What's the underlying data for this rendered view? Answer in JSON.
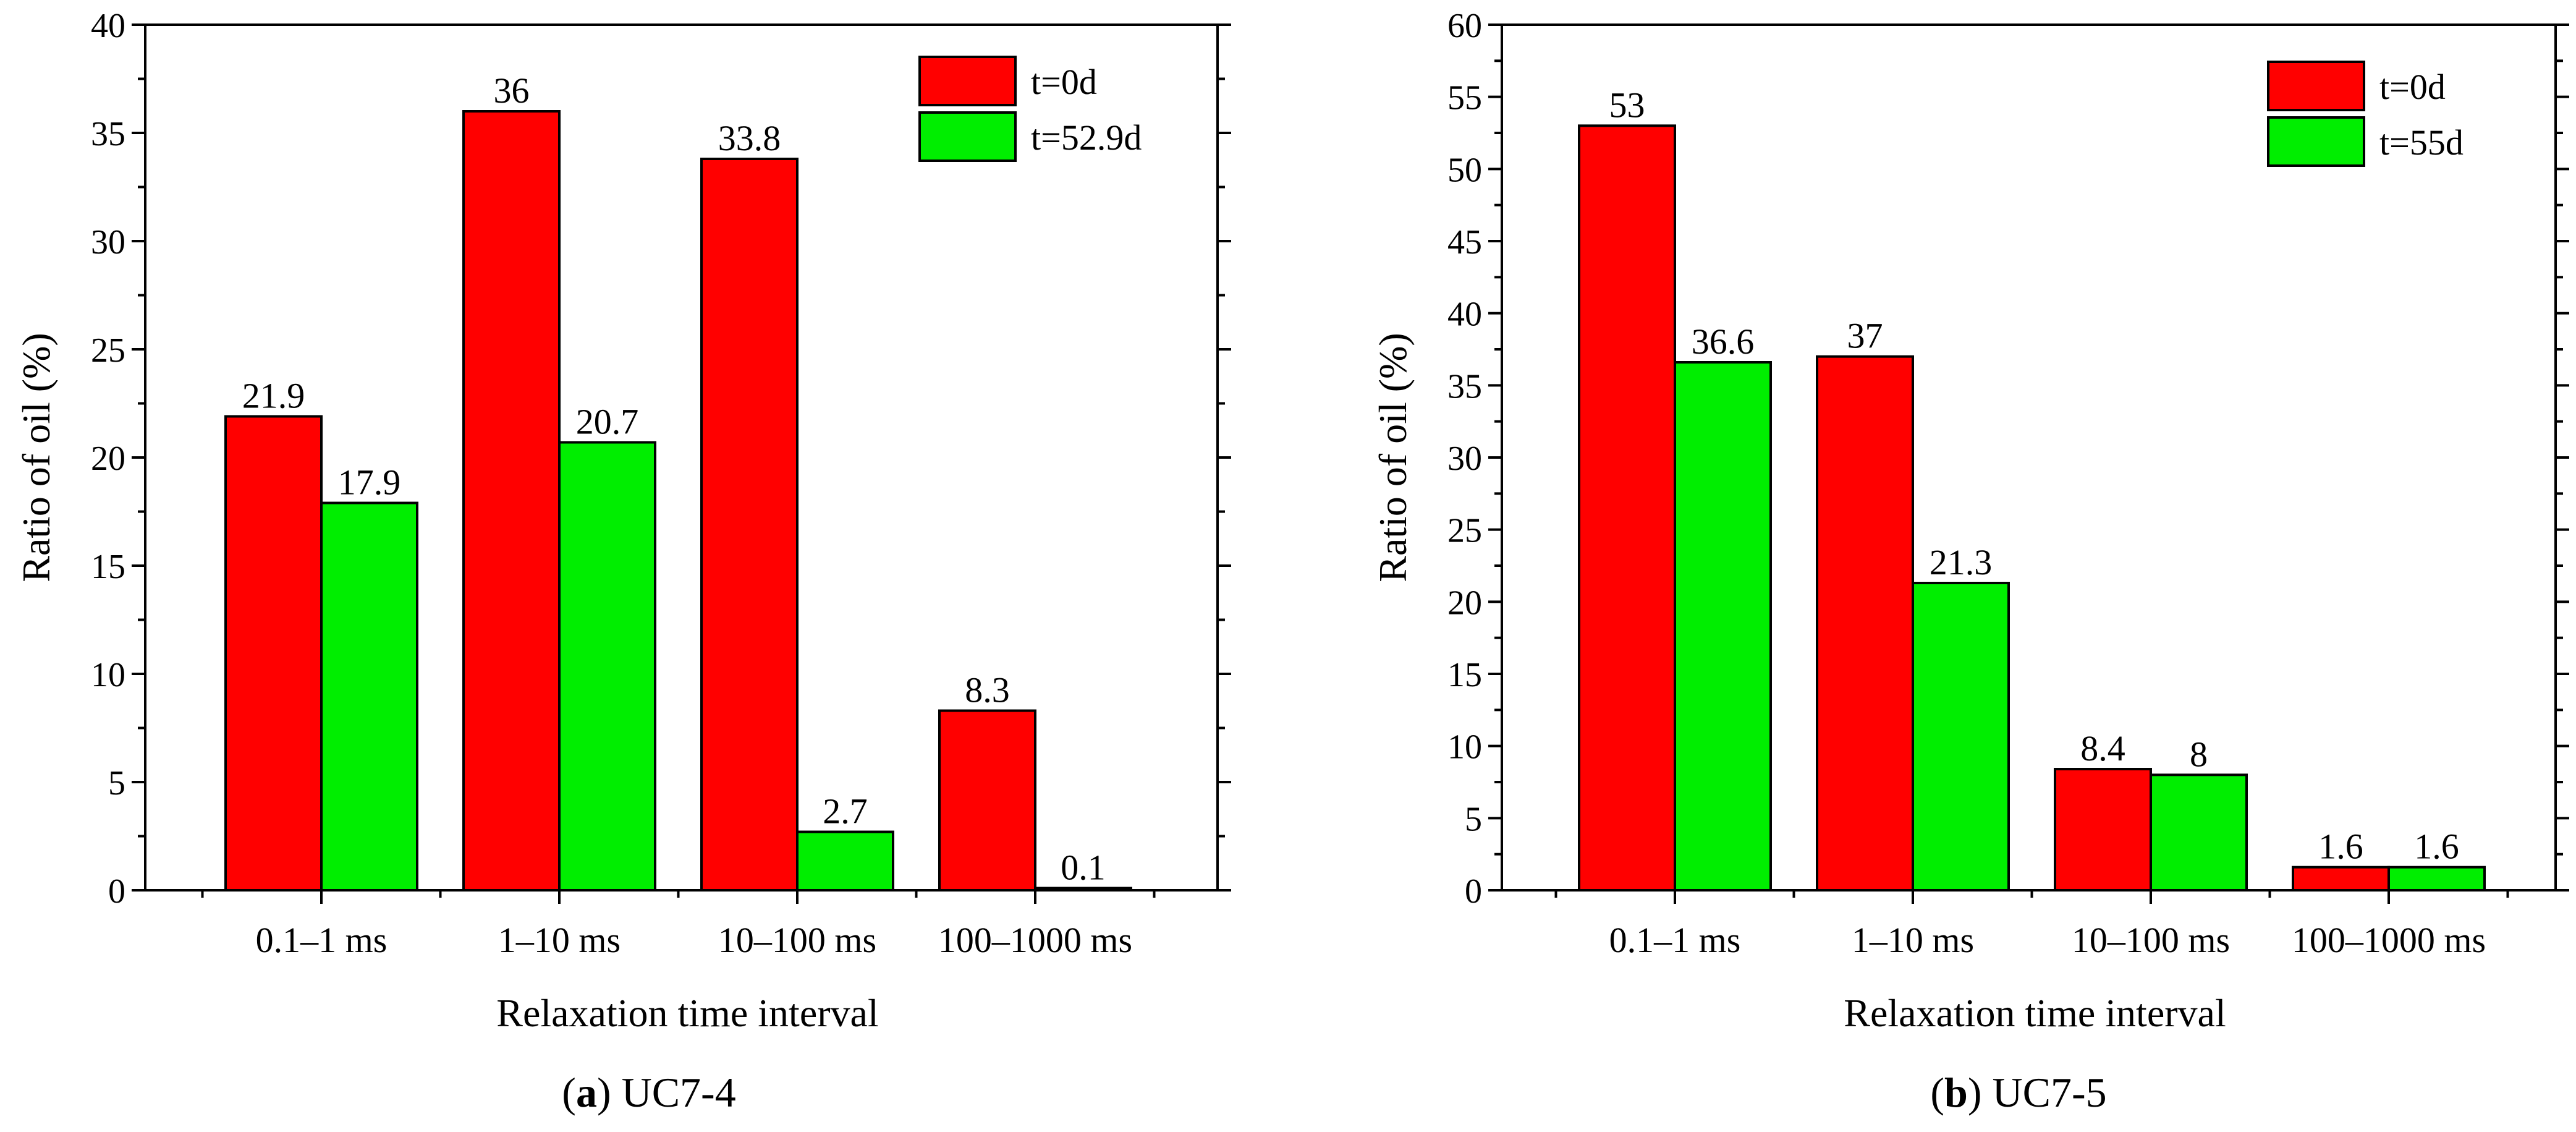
{
  "charts": [
    {
      "id": "a",
      "chart_data": {
        "type": "bar",
        "categories": [
          "0.1–1 ms",
          "1–10 ms",
          "10–100 ms",
          "100–1000 ms"
        ],
        "series": [
          {
            "name": "t=0d",
            "values": [
              21.9,
              36,
              33.8,
              8.3
            ],
            "labels": [
              "21.9",
              "36",
              "33.8",
              "8.3"
            ],
            "color": "#ff0000"
          },
          {
            "name": "t=52.9d",
            "values": [
              17.9,
              20.7,
              2.7,
              0.1
            ],
            "labels": [
              "17.9",
              "20.7",
              "2.7",
              "0.1"
            ],
            "color": "#00ee00"
          }
        ],
        "xlabel": "Relaxation time interval",
        "ylabel": "Ratio of oil (%)",
        "ylim": [
          0,
          40
        ],
        "yticks": [
          "0",
          "5",
          "10",
          "15",
          "20",
          "25",
          "30",
          "35",
          "40"
        ],
        "ytick_values": [
          0,
          5,
          10,
          15,
          20,
          25,
          30,
          35,
          40
        ],
        "legend_position": "top-right"
      },
      "caption": {
        "letter": "a",
        "open": "(",
        "close": ")",
        "name": " UC7-4"
      }
    },
    {
      "id": "b",
      "chart_data": {
        "type": "bar",
        "categories": [
          "0.1–1 ms",
          "1–10 ms",
          "10–100 ms",
          "100–1000 ms"
        ],
        "series": [
          {
            "name": "t=0d",
            "values": [
              53,
              37,
              8.4,
              1.6
            ],
            "labels": [
              "53",
              "37",
              "8.4",
              "1.6"
            ],
            "color": "#ff0000"
          },
          {
            "name": "t=55d",
            "values": [
              36.6,
              21.3,
              8,
              1.6
            ],
            "labels": [
              "36.6",
              "21.3",
              "8",
              "1.6"
            ],
            "color": "#00ee00"
          }
        ],
        "xlabel": "Relaxation time interval",
        "ylabel": "Ratio of oil (%)",
        "ylim": [
          0,
          60
        ],
        "yticks": [
          "0",
          "5",
          "10",
          "15",
          "20",
          "25",
          "30",
          "35",
          "40",
          "45",
          "50",
          "55",
          "60"
        ],
        "ytick_values": [
          0,
          5,
          10,
          15,
          20,
          25,
          30,
          35,
          40,
          45,
          50,
          55,
          60
        ],
        "legend_position": "top-right"
      },
      "caption": {
        "letter": "b",
        "open": "(",
        "close": ")",
        "name": " UC7-5"
      }
    }
  ]
}
